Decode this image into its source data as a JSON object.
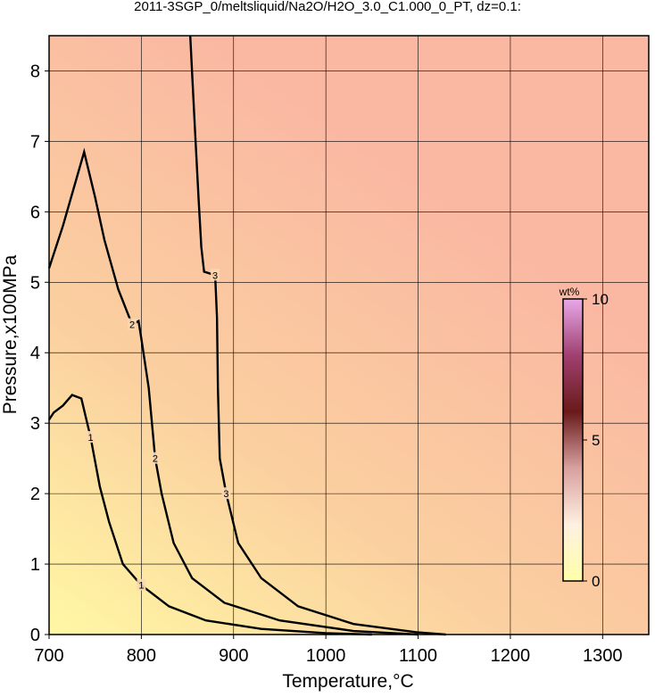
{
  "chart_data": {
    "type": "contour",
    "title": "2011-3SGP_0/meltsliquid/Na2O/H2O_3.0_C1.000_0_PT, dz=0.1:",
    "x_label": "Temperature,°C",
    "y_label": "Pressure,x100MPa",
    "xlim": [
      700,
      1350
    ],
    "xticks": [
      700,
      800,
      900,
      1000,
      1100,
      1200,
      1300
    ],
    "ylim": [
      0,
      8.5
    ],
    "yticks": [
      0,
      1,
      2,
      3,
      4,
      5,
      6,
      7,
      8
    ],
    "grid": true,
    "line_color": "#000000",
    "contours": [
      {
        "level": 1,
        "x": [
          700,
          705,
          715,
          725,
          735,
          745,
          755,
          765,
          780,
          800,
          830,
          870,
          930,
          1000,
          1050
        ],
        "y": [
          3.05,
          3.15,
          3.25,
          3.4,
          3.35,
          2.8,
          2.1,
          1.6,
          1.0,
          0.7,
          0.4,
          0.2,
          0.08,
          0.02,
          0
        ]
      },
      {
        "level": 2,
        "x": [
          700,
          715,
          738,
          750,
          760,
          775,
          790,
          797,
          800,
          808,
          815,
          822,
          835,
          855,
          890,
          950,
          1030,
          1100
        ],
        "y": [
          5.2,
          5.8,
          6.85,
          6.2,
          5.6,
          4.9,
          4.4,
          4.45,
          4.2,
          3.5,
          2.5,
          2.0,
          1.3,
          0.8,
          0.45,
          0.2,
          0.05,
          0
        ]
      },
      {
        "level": 3,
        "x": [
          853,
          858,
          862,
          865,
          868,
          880,
          882,
          883,
          885,
          892,
          905,
          930,
          970,
          1030,
          1100,
          1130
        ],
        "y": [
          8.5,
          7.2,
          6.2,
          5.5,
          5.15,
          5.1,
          4.5,
          3.5,
          2.5,
          2.0,
          1.3,
          0.8,
          0.4,
          0.15,
          0.03,
          0
        ]
      }
    ],
    "colorbar": {
      "label": "wt%",
      "lim": [
        0,
        10
      ],
      "ticks": [
        0,
        5,
        10
      ],
      "colors": [
        "#ffffa8",
        "#fff0e0",
        "#d8a0a0",
        "#6a1a1a",
        "#a04070",
        "#e8a8e8"
      ]
    }
  }
}
